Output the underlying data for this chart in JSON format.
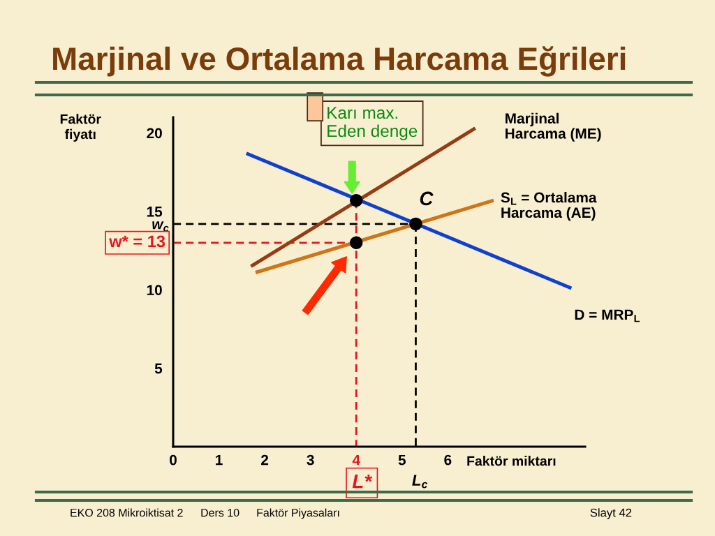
{
  "chart_data": {
    "type": "line",
    "title": "Marjinal ve Ortalama Harcama Eğrileri",
    "xlabel": "Faktör miktarı",
    "ylabel": "Faktör\nfiyatı",
    "xlim": [
      0,
      9
    ],
    "ylim": [
      0,
      21
    ],
    "xticks": [
      0,
      1,
      2,
      3,
      4,
      5,
      6
    ],
    "yticks": [
      5,
      10,
      15,
      20,
      {
        "value": 14.2,
        "label": "w$_{c}$"
      }
    ],
    "series": [
      {
        "name": "Marjinal\nHarcama (ME)",
        "color": "#963c14",
        "x": [
          1.7,
          6.6
        ],
        "values": [
          11.5,
          20.3
        ]
      },
      {
        "name": "S$_{L}$ = Ortalama\nHarcama (AE)",
        "color": "#cf7417",
        "x": [
          1.8,
          7.0
        ],
        "values": [
          11.1,
          15.7
        ]
      },
      {
        "name": "D = MRP$_{L}$",
        "color": "#1040d0",
        "x": [
          1.6,
          8.7
        ],
        "values": [
          18.7,
          10.1
        ]
      },
      {
        "color": "#e8141e",
        "line_style": "dashed",
        "x": [
          0,
          4
        ],
        "values": [
          13,
          13
        ]
      },
      {
        "color": "#e8141e",
        "line_style": "dashed",
        "x": [
          4,
          4
        ],
        "values": [
          15.7,
          0
        ]
      },
      {
        "color": "#000000",
        "line_style": "dashed",
        "x": [
          0,
          5.3
        ],
        "values": [
          14.2,
          14.2
        ]
      },
      {
        "color": "#000000",
        "line_style": "dashed",
        "x": [
          5.3,
          5.3
        ],
        "values": [
          14.2,
          0
        ]
      },
      {
        "type": "scatter",
        "color": "#000000",
        "marker": "circle",
        "x": [
          4,
          4,
          5.3
        ],
        "values": [
          15.7,
          13,
          14.2
        ]
      }
    ],
    "annotations": [
      "Karı max.\nEden denge",
      {
        "text": "C",
        "x": 5.3,
        "y": 14.2
      },
      {
        "text": "w* = 13",
        "x": 0,
        "y": 13
      },
      {
        "text": "L*",
        "x": 4,
        "y": 0
      },
      {
        "text": "L$_{c}$",
        "x": 5.3,
        "y": 0
      },
      "EKO 208 Mikroiktisat 2",
      "Ders 10",
      "Faktör Piyasaları",
      "Slayt 42"
    ]
  }
}
